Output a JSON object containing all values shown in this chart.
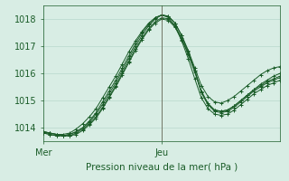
{
  "bg_color": "#d8ede4",
  "grid_color": "#b8d8cc",
  "line_color": "#1a5c28",
  "axis_label_color": "#1a5c28",
  "tick_color": "#1a5c28",
  "xlabel": "Pression niveau de la mer( hPa )",
  "xlim": [
    0,
    48
  ],
  "ylim": [
    1013.5,
    1018.5
  ],
  "yticks": [
    1014,
    1015,
    1016,
    1017,
    1018
  ],
  "xtick_positions": [
    0,
    24
  ],
  "xtick_labels": [
    "Mer",
    "Jeu"
  ],
  "vline_x": 24,
  "series": [
    [
      1013.8,
      1013.75,
      1013.7,
      1013.7,
      1013.75,
      1013.85,
      1014.0,
      1014.2,
      1014.5,
      1014.85,
      1015.25,
      1015.65,
      1016.1,
      1016.55,
      1017.0,
      1017.4,
      1017.75,
      1018.0,
      1018.15,
      1018.1,
      1017.85,
      1017.4,
      1016.85,
      1016.2,
      1015.55,
      1015.15,
      1014.95,
      1014.9,
      1015.0,
      1015.15,
      1015.35,
      1015.55,
      1015.75,
      1015.95,
      1016.1,
      1016.2,
      1016.25
    ],
    [
      1013.8,
      1013.75,
      1013.7,
      1013.7,
      1013.75,
      1013.85,
      1014.0,
      1014.25,
      1014.55,
      1014.95,
      1015.35,
      1015.75,
      1016.2,
      1016.65,
      1017.1,
      1017.5,
      1017.8,
      1018.05,
      1018.15,
      1018.1,
      1017.85,
      1017.4,
      1016.8,
      1016.1,
      1015.3,
      1014.85,
      1014.65,
      1014.6,
      1014.65,
      1014.8,
      1015.0,
      1015.2,
      1015.4,
      1015.6,
      1015.75,
      1015.9,
      1016.0
    ],
    [
      1013.85,
      1013.8,
      1013.75,
      1013.7,
      1013.7,
      1013.8,
      1013.95,
      1014.15,
      1014.4,
      1014.75,
      1015.15,
      1015.55,
      1016.0,
      1016.45,
      1016.9,
      1017.3,
      1017.65,
      1017.9,
      1018.05,
      1018.0,
      1017.75,
      1017.3,
      1016.75,
      1016.1,
      1015.35,
      1014.9,
      1014.65,
      1014.6,
      1014.65,
      1014.8,
      1015.0,
      1015.2,
      1015.4,
      1015.55,
      1015.7,
      1015.8,
      1015.9
    ],
    [
      1013.85,
      1013.8,
      1013.75,
      1013.7,
      1013.7,
      1013.75,
      1013.9,
      1014.1,
      1014.35,
      1014.7,
      1015.1,
      1015.5,
      1015.95,
      1016.4,
      1016.85,
      1017.25,
      1017.6,
      1017.85,
      1018.0,
      1017.95,
      1017.7,
      1017.25,
      1016.7,
      1016.05,
      1015.3,
      1014.85,
      1014.6,
      1014.55,
      1014.6,
      1014.75,
      1014.95,
      1015.15,
      1015.35,
      1015.5,
      1015.65,
      1015.75,
      1015.85
    ],
    [
      1013.85,
      1013.8,
      1013.75,
      1013.75,
      1013.8,
      1013.95,
      1014.15,
      1014.4,
      1014.7,
      1015.1,
      1015.5,
      1015.9,
      1016.35,
      1016.8,
      1017.2,
      1017.55,
      1017.85,
      1018.05,
      1018.15,
      1018.05,
      1017.75,
      1017.2,
      1016.55,
      1015.8,
      1015.1,
      1014.7,
      1014.5,
      1014.45,
      1014.5,
      1014.65,
      1014.85,
      1015.05,
      1015.25,
      1015.4,
      1015.55,
      1015.65,
      1015.75
    ]
  ]
}
